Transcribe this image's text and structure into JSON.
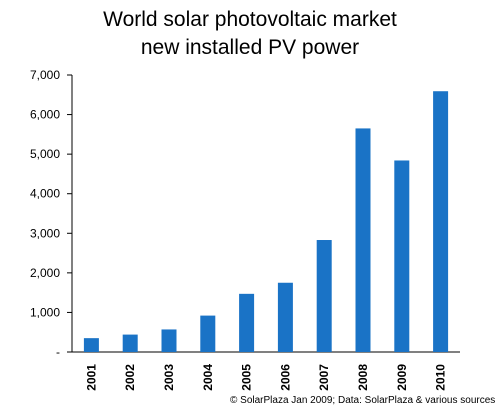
{
  "chart_data": {
    "type": "bar",
    "title": "World solar photovoltaic  market",
    "subtitle": "new installed PV power",
    "categories": [
      "2001",
      "2002",
      "2003",
      "2004",
      "2005",
      "2006",
      "2007",
      "2008",
      "2009",
      "2010"
    ],
    "values": [
      350,
      440,
      570,
      920,
      1470,
      1750,
      2830,
      5650,
      4840,
      6590
    ],
    "ylim": [
      0,
      7000
    ],
    "yticks": [
      0,
      1000,
      2000,
      3000,
      4000,
      5000,
      6000,
      7000
    ],
    "ytick_labels": [
      "-",
      "1,000",
      "2,000",
      "3,000",
      "4,000",
      "5,000",
      "6,000",
      "7,000"
    ],
    "xlabel": "",
    "ylabel": "",
    "grid": false,
    "legend": "none",
    "bar_color": "#1a73c6"
  },
  "source_note": "© SolarPlaza Jan  2009; Data: SolarPlaza &  various sources"
}
